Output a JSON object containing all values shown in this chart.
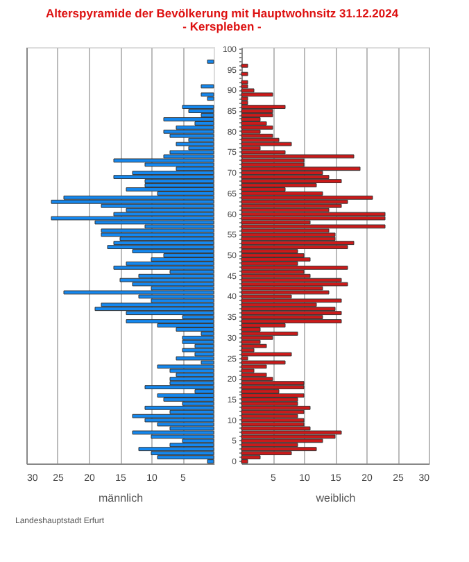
{
  "chart_data": [
    {
      "type": "bar",
      "orientation": "horizontal",
      "title": "Alterspyramide der Bevölkerung mit Hauptwohnsitz 31.12.2024",
      "subtitle": "- Kerspleben -",
      "xlabel": "männlich",
      "annotations": [
        "Landeshauptstadt Erfurt"
      ],
      "categories": [
        "100",
        null,
        null,
        null,
        null,
        "95",
        null,
        null,
        null,
        null,
        "90",
        null,
        null,
        null,
        null,
        "85",
        null,
        null,
        null,
        null,
        "80",
        null,
        null,
        null,
        null,
        "75",
        null,
        null,
        null,
        null,
        "70",
        null,
        null,
        null,
        null,
        "65",
        null,
        null,
        null,
        null,
        "60",
        null,
        null,
        null,
        null,
        "55",
        null,
        null,
        null,
        null,
        "50",
        null,
        null,
        null,
        null,
        "45",
        null,
        null,
        null,
        null,
        "40",
        null,
        null,
        null,
        null,
        "35",
        null,
        null,
        null,
        null,
        "30",
        null,
        null,
        null,
        null,
        "25",
        null,
        null,
        null,
        null,
        "20",
        null,
        null,
        null,
        null,
        "15",
        null,
        null,
        null,
        null,
        "10",
        null,
        null,
        null,
        null,
        "5",
        null,
        null,
        null,
        null,
        "0"
      ],
      "series": [
        {
          "color": "#1488f0",
          "values": [
            0,
            0,
            0,
            1,
            0,
            0,
            0,
            0,
            0,
            2,
            0,
            2,
            1,
            0,
            5,
            4,
            2,
            8,
            3,
            6,
            8,
            7,
            4,
            6,
            4,
            7,
            8,
            16,
            11,
            6,
            13,
            16,
            11,
            11,
            14,
            9,
            24,
            26,
            18,
            14,
            16,
            26,
            19,
            11,
            18,
            18,
            15,
            16,
            17,
            13,
            8,
            10,
            14,
            16,
            7,
            12,
            15,
            13,
            10,
            24,
            12,
            10,
            18,
            19,
            14,
            5,
            14,
            9,
            6,
            2,
            5,
            5,
            3,
            5,
            3,
            6,
            2,
            9,
            7,
            6,
            7,
            7,
            11,
            3,
            9,
            8,
            5,
            11,
            7,
            13,
            11,
            9,
            7,
            13,
            10,
            5,
            7,
            12,
            10,
            9,
            1
          ]
        }
      ],
      "xlim": [
        30,
        0
      ],
      "xticks": [
        30,
        25,
        20,
        15,
        10,
        5
      ],
      "grid": "x",
      "tick_labels": "x"
    },
    {
      "type": "bar",
      "orientation": "horizontal",
      "xlabel": "weiblich",
      "categories": [
        "100",
        null,
        null,
        null,
        null,
        "95",
        null,
        null,
        null,
        null,
        "90",
        null,
        null,
        null,
        null,
        "85",
        null,
        null,
        null,
        null,
        "80",
        null,
        null,
        null,
        null,
        "75",
        null,
        null,
        null,
        null,
        "70",
        null,
        null,
        null,
        null,
        "65",
        null,
        null,
        null,
        null,
        "60",
        null,
        null,
        null,
        null,
        "55",
        null,
        null,
        null,
        null,
        "50",
        null,
        null,
        null,
        null,
        "45",
        null,
        null,
        null,
        null,
        "40",
        null,
        null,
        null,
        null,
        "35",
        null,
        null,
        null,
        null,
        "30",
        null,
        null,
        null,
        null,
        "25",
        null,
        null,
        null,
        null,
        "20",
        null,
        null,
        null,
        null,
        "15",
        null,
        null,
        null,
        null,
        "10",
        null,
        null,
        null,
        null,
        "5",
        null,
        null,
        null,
        null,
        "0"
      ],
      "series": [
        {
          "color": "#cc1a1a",
          "values": [
            0,
            0,
            0,
            0,
            1,
            0,
            1,
            0,
            1,
            1,
            2,
            5,
            1,
            1,
            7,
            5,
            5,
            3,
            4,
            5,
            3,
            5,
            6,
            8,
            3,
            7,
            18,
            10,
            10,
            19,
            13,
            14,
            16,
            12,
            7,
            13,
            21,
            17,
            16,
            14,
            23,
            23,
            11,
            23,
            14,
            15,
            15,
            18,
            17,
            9,
            10,
            11,
            9,
            17,
            10,
            11,
            16,
            17,
            13,
            14,
            8,
            16,
            12,
            15,
            16,
            13,
            16,
            7,
            3,
            9,
            5,
            3,
            4,
            2,
            8,
            1,
            7,
            4,
            2,
            4,
            5,
            10,
            10,
            6,
            10,
            9,
            9,
            11,
            10,
            9,
            10,
            10,
            11,
            16,
            15,
            13,
            9,
            12,
            8,
            3,
            1
          ]
        }
      ],
      "xlim": [
        0,
        30
      ],
      "xticks": [
        5,
        10,
        15,
        20,
        25,
        30
      ],
      "grid": "x"
    }
  ]
}
